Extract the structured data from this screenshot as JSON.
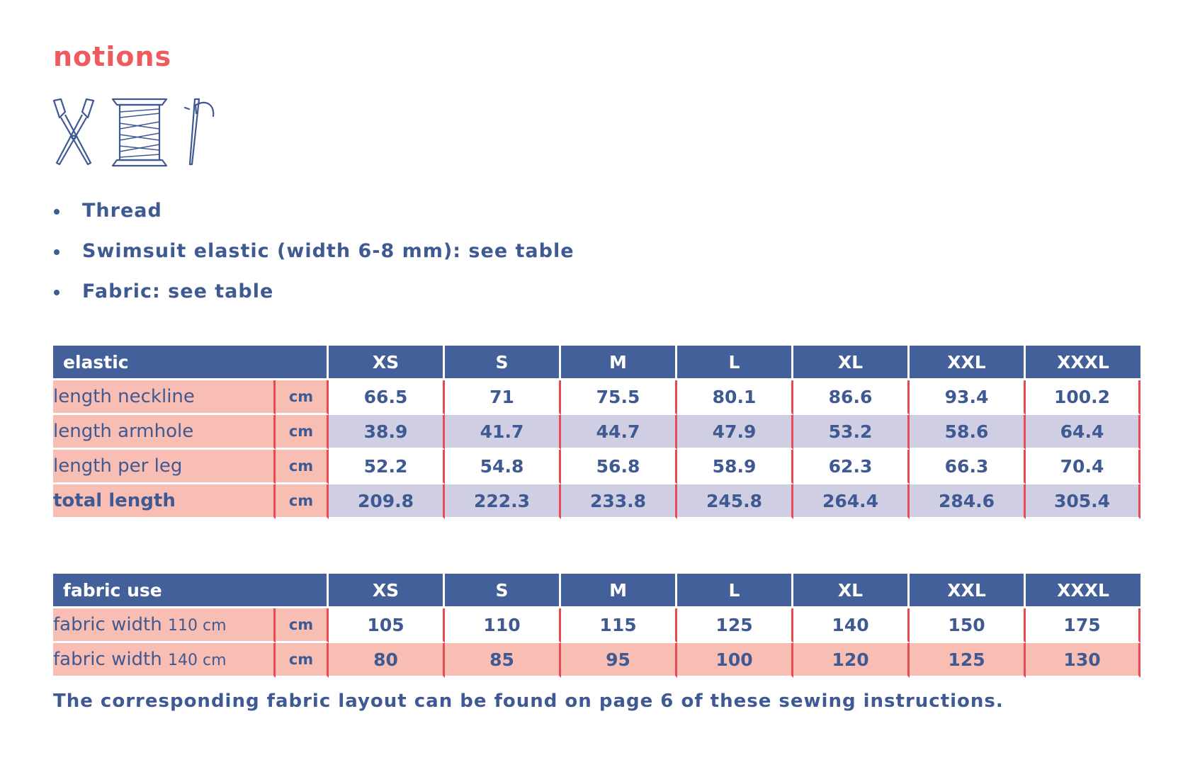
{
  "title": "notions",
  "icons": [
    "scissors-icon",
    "thread-spool-icon",
    "needle-icon"
  ],
  "bullets": [
    "Thread",
    "Swimsuit elastic (width 6-8 mm): see table",
    "Fabric: see table"
  ],
  "elastic_table": {
    "header": "elastic",
    "sizes": [
      "XS",
      "S",
      "M",
      "L",
      "XL",
      "XXL",
      "XXXL"
    ],
    "rows": [
      {
        "label": "length neckline",
        "unit": "cm",
        "values": [
          "66.5",
          "71",
          "75.5",
          "80.1",
          "86.6",
          "93.4",
          "100.2"
        ]
      },
      {
        "label": "length armhole",
        "unit": "cm",
        "values": [
          "38.9",
          "41.7",
          "44.7",
          "47.9",
          "53.2",
          "58.6",
          "64.4"
        ]
      },
      {
        "label": "length per leg",
        "unit": "cm",
        "values": [
          "52.2",
          "54.8",
          "56.8",
          "58.9",
          "62.3",
          "66.3",
          "70.4"
        ]
      },
      {
        "label": "total length",
        "unit": "cm",
        "values": [
          "209.8",
          "222.3",
          "233.8",
          "245.8",
          "264.4",
          "284.6",
          "305.4"
        ]
      }
    ]
  },
  "fabric_table": {
    "header": "fabric use",
    "sizes": [
      "XS",
      "S",
      "M",
      "L",
      "XL",
      "XXL",
      "XXXL"
    ],
    "rows": [
      {
        "label": "fabric width",
        "label_suffix": "110 cm",
        "unit": "cm",
        "values": [
          "105",
          "110",
          "115",
          "125",
          "140",
          "150",
          "175"
        ]
      },
      {
        "label": "fabric width",
        "label_suffix": "140 cm",
        "unit": "cm",
        "values": [
          "80",
          "85",
          "95",
          "100",
          "120",
          "125",
          "130"
        ]
      }
    ]
  },
  "footnote": "The corresponding fabric layout can be found on page 6 of these sewing instructions.",
  "colors": {
    "accent_red": "#ef5a5e",
    "navy": "#43609b",
    "text_blue": "#3f5a93",
    "salmon": "#f8bdb3",
    "lavender": "#cfcee3",
    "divider_red": "#e84a55"
  }
}
